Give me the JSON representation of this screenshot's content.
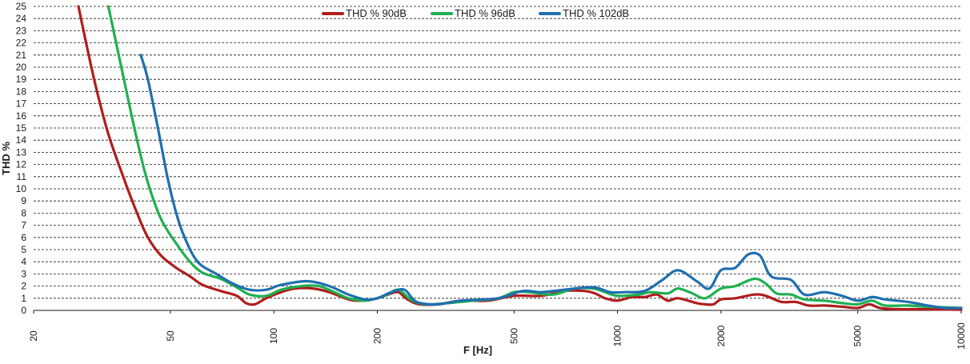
{
  "chart_data": {
    "type": "line",
    "title": "",
    "xlabel": "F [Hz]",
    "ylabel": "THD %",
    "xscale": "log",
    "xlim": [
      20,
      10000
    ],
    "ylim": [
      0,
      25
    ],
    "grid": "horizontal dashed",
    "legend_position": "top-center",
    "x_ticks": [
      20,
      50,
      100,
      200,
      500,
      1000,
      2000,
      5000,
      10000
    ],
    "y_ticks": [
      0,
      1,
      2,
      3,
      4,
      5,
      6,
      7,
      8,
      9,
      10,
      11,
      12,
      13,
      14,
      15,
      16,
      17,
      18,
      19,
      20,
      21,
      22,
      23,
      24,
      25
    ],
    "series": [
      {
        "name": "THD % 90dB",
        "color": "#b01e1e",
        "points": [
          [
            27,
            25
          ],
          [
            30,
            19
          ],
          [
            33,
            14.5
          ],
          [
            37,
            10.5
          ],
          [
            40,
            8
          ],
          [
            43,
            6
          ],
          [
            47,
            4.5
          ],
          [
            52,
            3.5
          ],
          [
            57,
            2.8
          ],
          [
            62,
            2.1
          ],
          [
            70,
            1.6
          ],
          [
            78,
            1.2
          ],
          [
            83,
            0.6
          ],
          [
            88,
            0.5
          ],
          [
            95,
            1.0
          ],
          [
            105,
            1.5
          ],
          [
            115,
            1.8
          ],
          [
            130,
            1.8
          ],
          [
            145,
            1.5
          ],
          [
            165,
            0.9
          ],
          [
            180,
            0.8
          ],
          [
            200,
            1.0
          ],
          [
            215,
            1.3
          ],
          [
            230,
            1.5
          ],
          [
            245,
            0.9
          ],
          [
            265,
            0.5
          ],
          [
            300,
            0.5
          ],
          [
            350,
            0.8
          ],
          [
            420,
            0.8
          ],
          [
            500,
            1.2
          ],
          [
            600,
            1.2
          ],
          [
            700,
            1.6
          ],
          [
            800,
            1.6
          ],
          [
            860,
            1.4
          ],
          [
            920,
            1.0
          ],
          [
            1000,
            0.8
          ],
          [
            1100,
            1.1
          ],
          [
            1200,
            1.1
          ],
          [
            1300,
            1.3
          ],
          [
            1400,
            0.8
          ],
          [
            1500,
            1.0
          ],
          [
            1700,
            0.6
          ],
          [
            1800,
            0.5
          ],
          [
            1900,
            0.5
          ],
          [
            2000,
            0.9
          ],
          [
            2200,
            1.0
          ],
          [
            2500,
            1.3
          ],
          [
            2700,
            1.2
          ],
          [
            3000,
            0.7
          ],
          [
            3300,
            0.7
          ],
          [
            3600,
            0.4
          ],
          [
            4000,
            0.4
          ],
          [
            4500,
            0.3
          ],
          [
            5000,
            0.2
          ],
          [
            5400,
            0.5
          ],
          [
            5800,
            0.2
          ],
          [
            6500,
            0.1
          ],
          [
            8000,
            0.1
          ],
          [
            10000,
            0.05
          ]
        ]
      },
      {
        "name": "THD % 96dB",
        "color": "#1fb050",
        "points": [
          [
            33,
            25
          ],
          [
            36,
            20
          ],
          [
            40,
            14
          ],
          [
            43,
            10.5
          ],
          [
            47,
            7.5
          ],
          [
            52,
            5.5
          ],
          [
            57,
            4
          ],
          [
            62,
            3.1
          ],
          [
            70,
            2.6
          ],
          [
            78,
            1.9
          ],
          [
            85,
            1.3
          ],
          [
            95,
            1.2
          ],
          [
            105,
            1.7
          ],
          [
            120,
            2.0
          ],
          [
            135,
            2.0
          ],
          [
            150,
            1.5
          ],
          [
            165,
            1.0
          ],
          [
            185,
            0.8
          ],
          [
            210,
            1.2
          ],
          [
            230,
            1.7
          ],
          [
            250,
            0.9
          ],
          [
            275,
            0.5
          ],
          [
            320,
            0.6
          ],
          [
            380,
            0.8
          ],
          [
            450,
            1.0
          ],
          [
            500,
            1.5
          ],
          [
            550,
            1.5
          ],
          [
            650,
            1.3
          ],
          [
            750,
            1.8
          ],
          [
            850,
            1.8
          ],
          [
            920,
            1.5
          ],
          [
            1000,
            1.2
          ],
          [
            1150,
            1.3
          ],
          [
            1250,
            1.5
          ],
          [
            1400,
            1.4
          ],
          [
            1500,
            1.8
          ],
          [
            1650,
            1.4
          ],
          [
            1800,
            1.0
          ],
          [
            2000,
            1.8
          ],
          [
            2200,
            2.0
          ],
          [
            2500,
            2.6
          ],
          [
            2700,
            2.2
          ],
          [
            2900,
            1.4
          ],
          [
            3200,
            1.3
          ],
          [
            3500,
            0.9
          ],
          [
            4000,
            0.8
          ],
          [
            4500,
            0.6
          ],
          [
            5000,
            0.5
          ],
          [
            5500,
            0.8
          ],
          [
            6000,
            0.4
          ],
          [
            7000,
            0.4
          ],
          [
            8000,
            0.3
          ],
          [
            10000,
            0.2
          ]
        ]
      },
      {
        "name": "THD % 102dB",
        "color": "#1f6faf",
        "points": [
          [
            41,
            21
          ],
          [
            43,
            19
          ],
          [
            46,
            15
          ],
          [
            49,
            11
          ],
          [
            52,
            8
          ],
          [
            55,
            6
          ],
          [
            60,
            4
          ],
          [
            68,
            3
          ],
          [
            76,
            2.2
          ],
          [
            85,
            1.7
          ],
          [
            95,
            1.7
          ],
          [
            105,
            2.1
          ],
          [
            125,
            2.4
          ],
          [
            145,
            2.0
          ],
          [
            165,
            1.3
          ],
          [
            185,
            0.9
          ],
          [
            200,
            1.0
          ],
          [
            220,
            1.5
          ],
          [
            240,
            1.7
          ],
          [
            260,
            0.7
          ],
          [
            300,
            0.5
          ],
          [
            350,
            0.8
          ],
          [
            450,
            1.0
          ],
          [
            530,
            1.6
          ],
          [
            600,
            1.5
          ],
          [
            700,
            1.7
          ],
          [
            850,
            1.9
          ],
          [
            950,
            1.5
          ],
          [
            1050,
            1.5
          ],
          [
            1200,
            1.6
          ],
          [
            1350,
            2.5
          ],
          [
            1500,
            3.3
          ],
          [
            1700,
            2.4
          ],
          [
            1850,
            1.8
          ],
          [
            2000,
            3.3
          ],
          [
            2200,
            3.5
          ],
          [
            2400,
            4.6
          ],
          [
            2600,
            4.5
          ],
          [
            2800,
            2.8
          ],
          [
            3200,
            2.5
          ],
          [
            3500,
            1.3
          ],
          [
            4000,
            1.5
          ],
          [
            4500,
            1.2
          ],
          [
            5000,
            0.8
          ],
          [
            5500,
            1.1
          ],
          [
            6000,
            0.9
          ],
          [
            7000,
            0.7
          ],
          [
            8000,
            0.4
          ],
          [
            9000,
            0.2
          ],
          [
            10000,
            0.2
          ]
        ]
      }
    ]
  }
}
